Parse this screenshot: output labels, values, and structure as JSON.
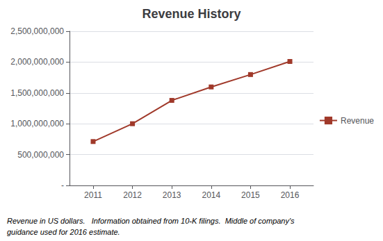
{
  "chart_data": {
    "type": "line",
    "title": "Revenue History",
    "x": [
      2011,
      2012,
      2013,
      2014,
      2015,
      2016
    ],
    "series": [
      {
        "name": "Revenue",
        "color": "#a0392a",
        "marker": "square",
        "values": [
          711700000,
          1000800000,
          1378900000,
          1597000000,
          1798000000,
          2010000000
        ]
      }
    ],
    "xlim": [
      2010.4,
      2016.6
    ],
    "xticks": [
      2011,
      2012,
      2013,
      2014,
      2015,
      2016
    ],
    "ylim": [
      0,
      2500000000
    ],
    "yticks": [
      {
        "value": 0,
        "label": "-"
      },
      {
        "value": 500000000,
        "label": "500,000,000"
      },
      {
        "value": 1000000000,
        "label": "1,000,000,000"
      },
      {
        "value": 1500000000,
        "label": "1,500,000,000"
      },
      {
        "value": 2000000000,
        "label": "2,000,000,000"
      },
      {
        "value": 2500000000,
        "label": "2,500,000,000"
      }
    ],
    "grid": true,
    "legend": "right",
    "annotations": [
      "Revenue in US dollars.   Information obtained from 10-K filings.  Middle of company's",
      "guidance used for 2016 estimate."
    ]
  }
}
